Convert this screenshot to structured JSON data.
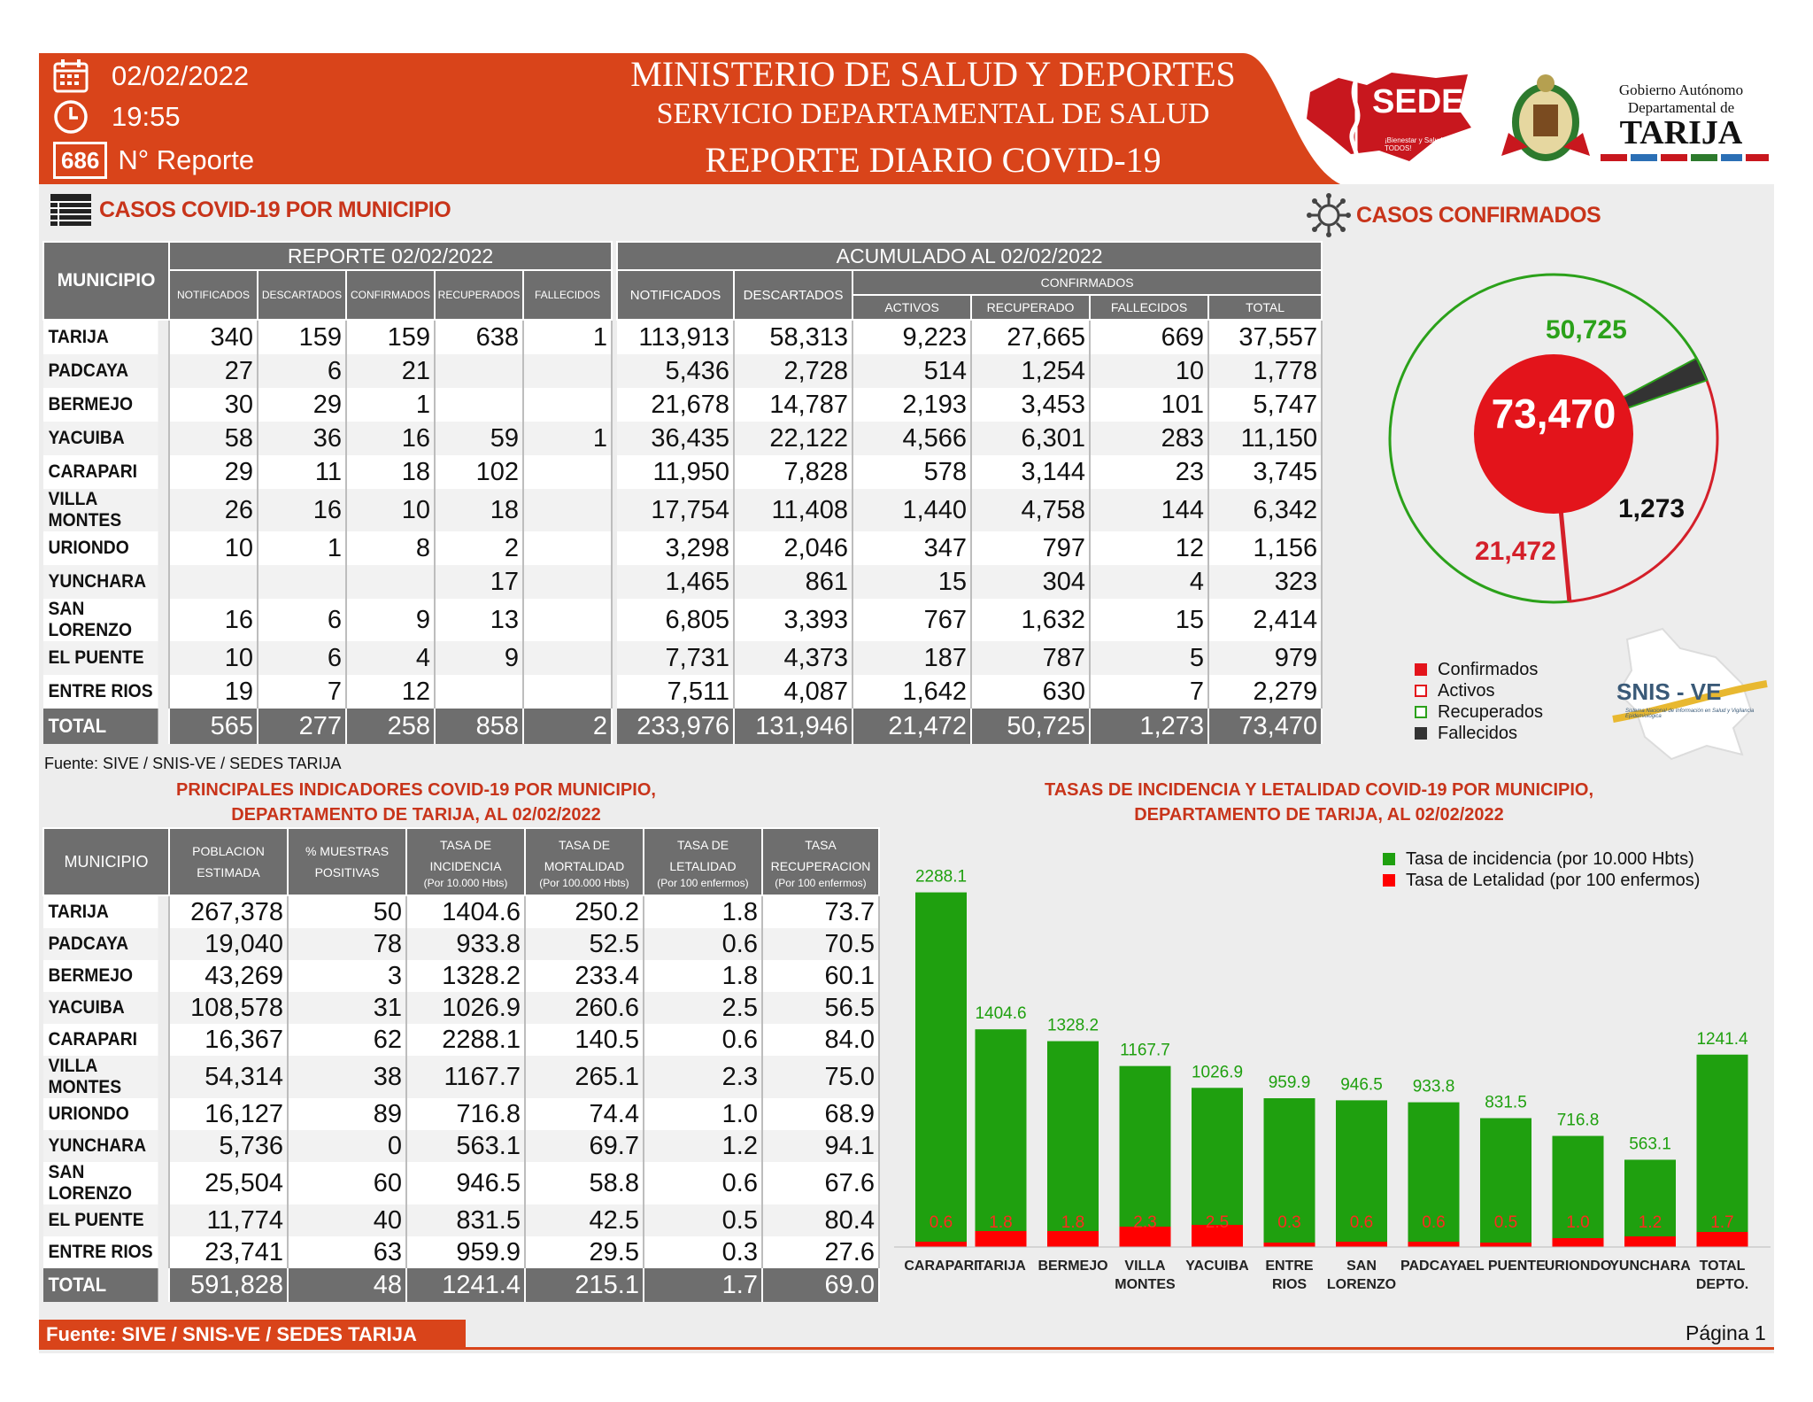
{
  "header": {
    "date": "02/02/2022",
    "time": "19:55",
    "report_number": "686",
    "report_label": "N° Reporte",
    "title_line1": "MINISTERIO DE SALUD Y DEPORTES",
    "title_line2": "SERVICIO DEPARTAMENTAL DE SALUD",
    "title_line3": "REPORTE DIARIO COVID-19",
    "sedes_logo": "SEDES",
    "sedes_tagline": "¡Bienestar y Salud para TODOS!",
    "gov_line1": "Gobierno Autónomo",
    "gov_line2": "Departamental de",
    "gov_line3": "TARIJA",
    "colors": {
      "orange": "#d9441a",
      "red": "#c8341a"
    }
  },
  "municipio_section": {
    "title": "CASOS COVID-19 POR MUNICIPIO",
    "col_municipio": "MUNICIPIO",
    "reporte_header": "REPORTE 02/02/2022",
    "acumulado_header": "ACUMULADO AL 02/02/2022",
    "confirmados_header": "CONFIRMADOS",
    "reporte_cols": [
      "NOTIFICADOS",
      "DESCARTADOS",
      "CONFIRMADOS",
      "RECUPERADOS",
      "FALLECIDOS"
    ],
    "acum_cols": [
      "NOTIFICADOS",
      "DESCARTADOS"
    ],
    "conf_cols": [
      "ACTIVOS",
      "RECUPERADO",
      "FALLECIDOS",
      "TOTAL"
    ],
    "rows": [
      [
        "TARIJA",
        "340",
        "159",
        "159",
        "638",
        "1",
        "113,913",
        "58,313",
        "9,223",
        "27,665",
        "669",
        "37,557"
      ],
      [
        "PADCAYA",
        "27",
        "6",
        "21",
        "",
        "",
        "5,436",
        "2,728",
        "514",
        "1,254",
        "10",
        "1,778"
      ],
      [
        "BERMEJO",
        "30",
        "29",
        "1",
        "",
        "",
        "21,678",
        "14,787",
        "2,193",
        "3,453",
        "101",
        "5,747"
      ],
      [
        "YACUIBA",
        "58",
        "36",
        "16",
        "59",
        "1",
        "36,435",
        "22,122",
        "4,566",
        "6,301",
        "283",
        "11,150"
      ],
      [
        "CARAPARI",
        "29",
        "11",
        "18",
        "102",
        "",
        "11,950",
        "7,828",
        "578",
        "3,144",
        "23",
        "3,745"
      ],
      [
        "VILLA MONTES",
        "26",
        "16",
        "10",
        "18",
        "",
        "17,754",
        "11,408",
        "1,440",
        "4,758",
        "144",
        "6,342"
      ],
      [
        "URIONDO",
        "10",
        "1",
        "8",
        "2",
        "",
        "3,298",
        "2,046",
        "347",
        "797",
        "12",
        "1,156"
      ],
      [
        "YUNCHARA",
        "",
        "",
        "",
        "17",
        "",
        "1,465",
        "861",
        "15",
        "304",
        "4",
        "323"
      ],
      [
        "SAN LORENZO",
        "16",
        "6",
        "9",
        "13",
        "",
        "6,805",
        "3,393",
        "767",
        "1,632",
        "15",
        "2,414"
      ],
      [
        "EL PUENTE",
        "10",
        "6",
        "4",
        "9",
        "",
        "7,731",
        "4,373",
        "187",
        "787",
        "5",
        "979"
      ],
      [
        "ENTRE RIOS",
        "19",
        "7",
        "12",
        "",
        "",
        "7,511",
        "4,087",
        "1,642",
        "630",
        "7",
        "2,279"
      ]
    ],
    "total": [
      "TOTAL",
      "565",
      "277",
      "258",
      "858",
      "2",
      "233,976",
      "131,946",
      "21,472",
      "50,725",
      "1,273",
      "73,470"
    ],
    "fuente": "Fuente: SIVE / SNIS-VE / SEDES TARIJA"
  },
  "confirmados_section": {
    "title": "CASOS CONFIRMADOS",
    "center_value": "73,470",
    "recuperados_label": "50,725",
    "activos_label": "21,472",
    "fallecidos_label": "1,273",
    "values": {
      "recuperados": 50725,
      "activos": 21472,
      "fallecidos": 1273
    },
    "legend": [
      {
        "label": "Confirmados",
        "color": "#e3141b",
        "style": "fill"
      },
      {
        "label": "Activos",
        "color": "#e3141b",
        "style": "outline"
      },
      {
        "label": "Recuperados",
        "color": "#2ba11a",
        "style": "outline"
      },
      {
        "label": "Fallecidos",
        "color": "#333333",
        "style": "fill"
      }
    ],
    "snis_logo": "SNIS - VE",
    "snis_tagline": "Sistema Nacional de Información en Salud y Vigilancia Epidemiológica"
  },
  "indicadores_section": {
    "title_line1": "PRINCIPALES INDICADORES COVID-19 POR MUNICIPIO,",
    "title_line2": "DEPARTAMENTO DE TARIJA, AL 02/02/2022",
    "headers": [
      {
        "main": "MUNICIPIO",
        "sub": ""
      },
      {
        "main": "POBLACION ESTIMADA",
        "sub": ""
      },
      {
        "main": "% MUESTRAS POSITIVAS",
        "sub": ""
      },
      {
        "main": "TASA DE INCIDENCIA",
        "sub": "(Por 10.000 Hbts)"
      },
      {
        "main": "TASA DE MORTALIDAD",
        "sub": "(Por 100.000 Hbts)"
      },
      {
        "main": "TASA DE LETALIDAD",
        "sub": "(Por 100 enfermos)"
      },
      {
        "main": "TASA RECUPERACION",
        "sub": "(Por 100 enfermos)"
      }
    ],
    "rows": [
      [
        "TARIJA",
        "267,378",
        "50",
        "1404.6",
        "250.2",
        "1.8",
        "73.7"
      ],
      [
        "PADCAYA",
        "19,040",
        "78",
        "933.8",
        "52.5",
        "0.6",
        "70.5"
      ],
      [
        "BERMEJO",
        "43,269",
        "3",
        "1328.2",
        "233.4",
        "1.8",
        "60.1"
      ],
      [
        "YACUIBA",
        "108,578",
        "31",
        "1026.9",
        "260.6",
        "2.5",
        "56.5"
      ],
      [
        "CARAPARI",
        "16,367",
        "62",
        "2288.1",
        "140.5",
        "0.6",
        "84.0"
      ],
      [
        "VILLA MONTES",
        "54,314",
        "38",
        "1167.7",
        "265.1",
        "2.3",
        "75.0"
      ],
      [
        "URIONDO",
        "16,127",
        "89",
        "716.8",
        "74.4",
        "1.0",
        "68.9"
      ],
      [
        "YUNCHARA",
        "5,736",
        "0",
        "563.1",
        "69.7",
        "1.2",
        "94.1"
      ],
      [
        "SAN LORENZO",
        "25,504",
        "60",
        "946.5",
        "58.8",
        "0.6",
        "67.6"
      ],
      [
        "EL PUENTE",
        "11,774",
        "40",
        "831.5",
        "42.5",
        "0.5",
        "80.4"
      ],
      [
        "ENTRE RIOS",
        "23,741",
        "63",
        "959.9",
        "29.5",
        "0.3",
        "27.6"
      ]
    ],
    "total": [
      "TOTAL",
      "591,828",
      "48",
      "1241.4",
      "215.1",
      "1.7",
      "69.0"
    ]
  },
  "chart_data": {
    "type": "bar",
    "title": "TASAS DE INCIDENCIA Y LETALIDAD COVID-19 POR MUNICIPIO, DEPARTAMENTO DE TARIJA, AL 02/02/2022",
    "title_line1": "TASAS DE INCIDENCIA Y LETALIDAD COVID-19 POR MUNICIPIO,",
    "title_line2": "DEPARTAMENTO DE TARIJA, AL 02/02/2022",
    "categories": [
      "CARAPARI",
      "TARIJA",
      "BERMEJO",
      "VILLA MONTES",
      "YACUIBA",
      "ENTRE RIOS",
      "SAN LORENZO",
      "PADCAYA",
      "EL PUENTE",
      "URIONDO",
      "YUNCHARA",
      "TOTAL DEPTO."
    ],
    "category_lines": [
      [
        "CARAPARI"
      ],
      [
        "TARIJA"
      ],
      [
        "BERMEJO"
      ],
      [
        "VILLA",
        "MONTES"
      ],
      [
        "YACUIBA"
      ],
      [
        "ENTRE",
        "RIOS"
      ],
      [
        "SAN",
        "LORENZO"
      ],
      [
        "PADCAYA"
      ],
      [
        "EL PUENTE"
      ],
      [
        "URIONDO"
      ],
      [
        "YUNCHARA"
      ],
      [
        "TOTAL",
        "DEPTO."
      ]
    ],
    "series": [
      {
        "name": "Tasa de incidencia (por 10.000 Hbts)",
        "color": "#1fa00f",
        "values": [
          2288.1,
          1404.6,
          1328.2,
          1167.7,
          1026.9,
          959.9,
          946.5,
          933.8,
          831.5,
          716.8,
          563.1,
          1241.4
        ]
      },
      {
        "name": "Tasa de Letalidad (por 100 enfermos)",
        "color": "#ff0000",
        "values": [
          0.6,
          1.8,
          1.8,
          2.3,
          2.5,
          0.3,
          0.6,
          0.6,
          0.5,
          1.0,
          1.2,
          1.7
        ]
      }
    ],
    "ylim": [
      0,
      2400
    ],
    "legend_position": "top-right",
    "grid": false
  },
  "footer": {
    "fuente": "Fuente: SIVE / SNIS-VE / SEDES TARIJA",
    "page": "Página 1"
  }
}
